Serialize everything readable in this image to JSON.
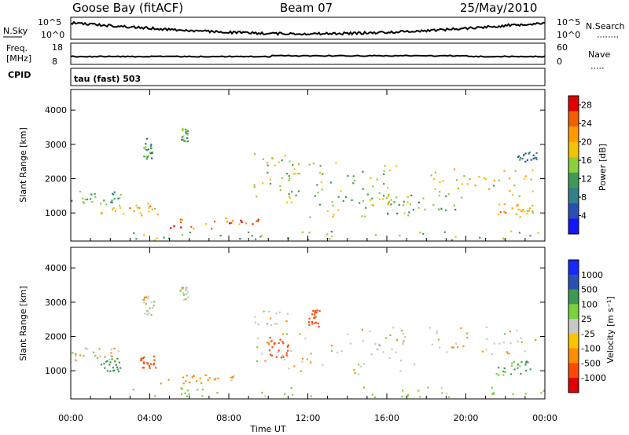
{
  "header": {
    "station": "Goose Bay (fitACF)",
    "beam": "Beam 07",
    "date": "25/May/2010"
  },
  "status_panels": {
    "nsky_label": "N.Sky",
    "nsearch_label": "N.Search",
    "noise_ticks": [
      "10^5",
      "10^0"
    ],
    "freq_label_1": "Freq.",
    "freq_label_2": "[MHz]",
    "freq_ticks": [
      "18",
      "8"
    ],
    "nave_label": "Nave",
    "nave_ticks": [
      "60",
      "0"
    ],
    "cpid_label": "CPID",
    "cpid_text": "tau (fast) 503"
  },
  "axes": {
    "xlabel": "Time UT",
    "ylabel": "Slant Range [km]",
    "power_cbar_label": "Power [dB]",
    "velocity_cbar_label": "Velocity [m s⁻¹]"
  },
  "colors": {
    "power": [
      "#1414ff",
      "#2a4fb4",
      "#32808a",
      "#3f9a5a",
      "#8bd03a",
      "#f2c400",
      "#ff9a00",
      "#f25e00",
      "#e10000"
    ],
    "velocity": [
      "#e10000",
      "#ff4800",
      "#ff8c00",
      "#ffc400",
      "#c8c8c8",
      "#78d23a",
      "#3c9a50",
      "#2a50b4",
      "#1428ff"
    ]
  },
  "chart_data": [
    {
      "type": "heatmap",
      "title": "Power [dB]",
      "xlabel": "Time UT",
      "ylabel": "Slant Range [km]",
      "x_ticks": [
        "00:00",
        "04:00",
        "08:00",
        "12:00",
        "16:00",
        "20:00",
        "00:00"
      ],
      "xlim_hours": [
        0,
        24
      ],
      "y_ticks": [
        1000,
        2000,
        3000,
        4000
      ],
      "ylim_km": [
        180,
        4600
      ],
      "colorbar_ticks": [
        4,
        8,
        12,
        16,
        20,
        24,
        28
      ],
      "colorbar_range": [
        0,
        30
      ],
      "echo_regions": [
        {
          "t": [
            0.0,
            2.5
          ],
          "r": [
            1250,
            1700
          ],
          "power": 12
        },
        {
          "t": [
            1.5,
            4.5
          ],
          "r": [
            900,
            1300
          ],
          "power": 20
        },
        {
          "t": [
            3.6,
            4.2
          ],
          "r": [
            2600,
            3200
          ],
          "power": 10
        },
        {
          "t": [
            5.5,
            5.9
          ],
          "r": [
            3100,
            3500
          ],
          "power": 12
        },
        {
          "t": [
            5.0,
            9.5
          ],
          "r": [
            550,
            900
          ],
          "power": 24
        },
        {
          "t": [
            3.0,
            24.0
          ],
          "r": [
            230,
            500
          ],
          "power": 14
        },
        {
          "t": [
            9.2,
            11.5
          ],
          "r": [
            1300,
            2800
          ],
          "power": 16
        },
        {
          "t": [
            10.5,
            16.5
          ],
          "r": [
            1500,
            2500
          ],
          "power": 14
        },
        {
          "t": [
            12.0,
            17.5
          ],
          "r": [
            900,
            1600
          ],
          "power": 16
        },
        {
          "t": [
            16.0,
            20.0
          ],
          "r": [
            1000,
            1600
          ],
          "power": 12
        },
        {
          "t": [
            18.0,
            23.5
          ],
          "r": [
            1500,
            2300
          ],
          "power": 18
        },
        {
          "t": [
            21.5,
            23.5
          ],
          "r": [
            900,
            1300
          ],
          "power": 20
        },
        {
          "t": [
            22.6,
            23.6
          ],
          "r": [
            2500,
            2800
          ],
          "power": 8
        }
      ]
    },
    {
      "type": "heatmap",
      "title": "Velocity [m s⁻¹]",
      "xlabel": "Time UT",
      "ylabel": "Slant Range [km]",
      "x_ticks": [
        "00:00",
        "04:00",
        "08:00",
        "12:00",
        "16:00",
        "20:00",
        "00:00"
      ],
      "xlim_hours": [
        0,
        24
      ],
      "y_ticks": [
        1000,
        2000,
        3000,
        4000
      ],
      "ylim_km": [
        180,
        4600
      ],
      "colorbar_ticks": [
        "1000",
        "500",
        "100",
        "25",
        "-25",
        "-100",
        "-500",
        "-1000"
      ],
      "echo_regions": [
        {
          "t": [
            0.0,
            2.5
          ],
          "r": [
            1300,
            1700
          ],
          "velocity": 0
        },
        {
          "t": [
            1.5,
            2.5
          ],
          "r": [
            1000,
            1400
          ],
          "velocity": 150
        },
        {
          "t": [
            3.5,
            4.3
          ],
          "r": [
            1100,
            1450
          ],
          "velocity": -150
        },
        {
          "t": [
            3.6,
            4.2
          ],
          "r": [
            2600,
            3200
          ],
          "velocity": 0
        },
        {
          "t": [
            5.5,
            5.9
          ],
          "r": [
            3100,
            3500
          ],
          "velocity": 0
        },
        {
          "t": [
            4.5,
            9.0
          ],
          "r": [
            650,
            900
          ],
          "velocity": -60
        },
        {
          "t": [
            3.0,
            24.0
          ],
          "r": [
            250,
            550
          ],
          "velocity": 60
        },
        {
          "t": [
            9.2,
            11.0
          ],
          "r": [
            1300,
            2800
          ],
          "velocity": 0
        },
        {
          "t": [
            10.0,
            11.0
          ],
          "r": [
            1400,
            2000
          ],
          "velocity": -200
        },
        {
          "t": [
            12.0,
            12.6
          ],
          "r": [
            2300,
            2800
          ],
          "velocity": -200
        },
        {
          "t": [
            11.0,
            17.5
          ],
          "r": [
            900,
            2300
          ],
          "velocity": 0
        },
        {
          "t": [
            18.0,
            23.5
          ],
          "r": [
            1500,
            2300
          ],
          "velocity": 0
        },
        {
          "t": [
            21.5,
            23.5
          ],
          "r": [
            900,
            1300
          ],
          "velocity": 100
        }
      ]
    }
  ]
}
